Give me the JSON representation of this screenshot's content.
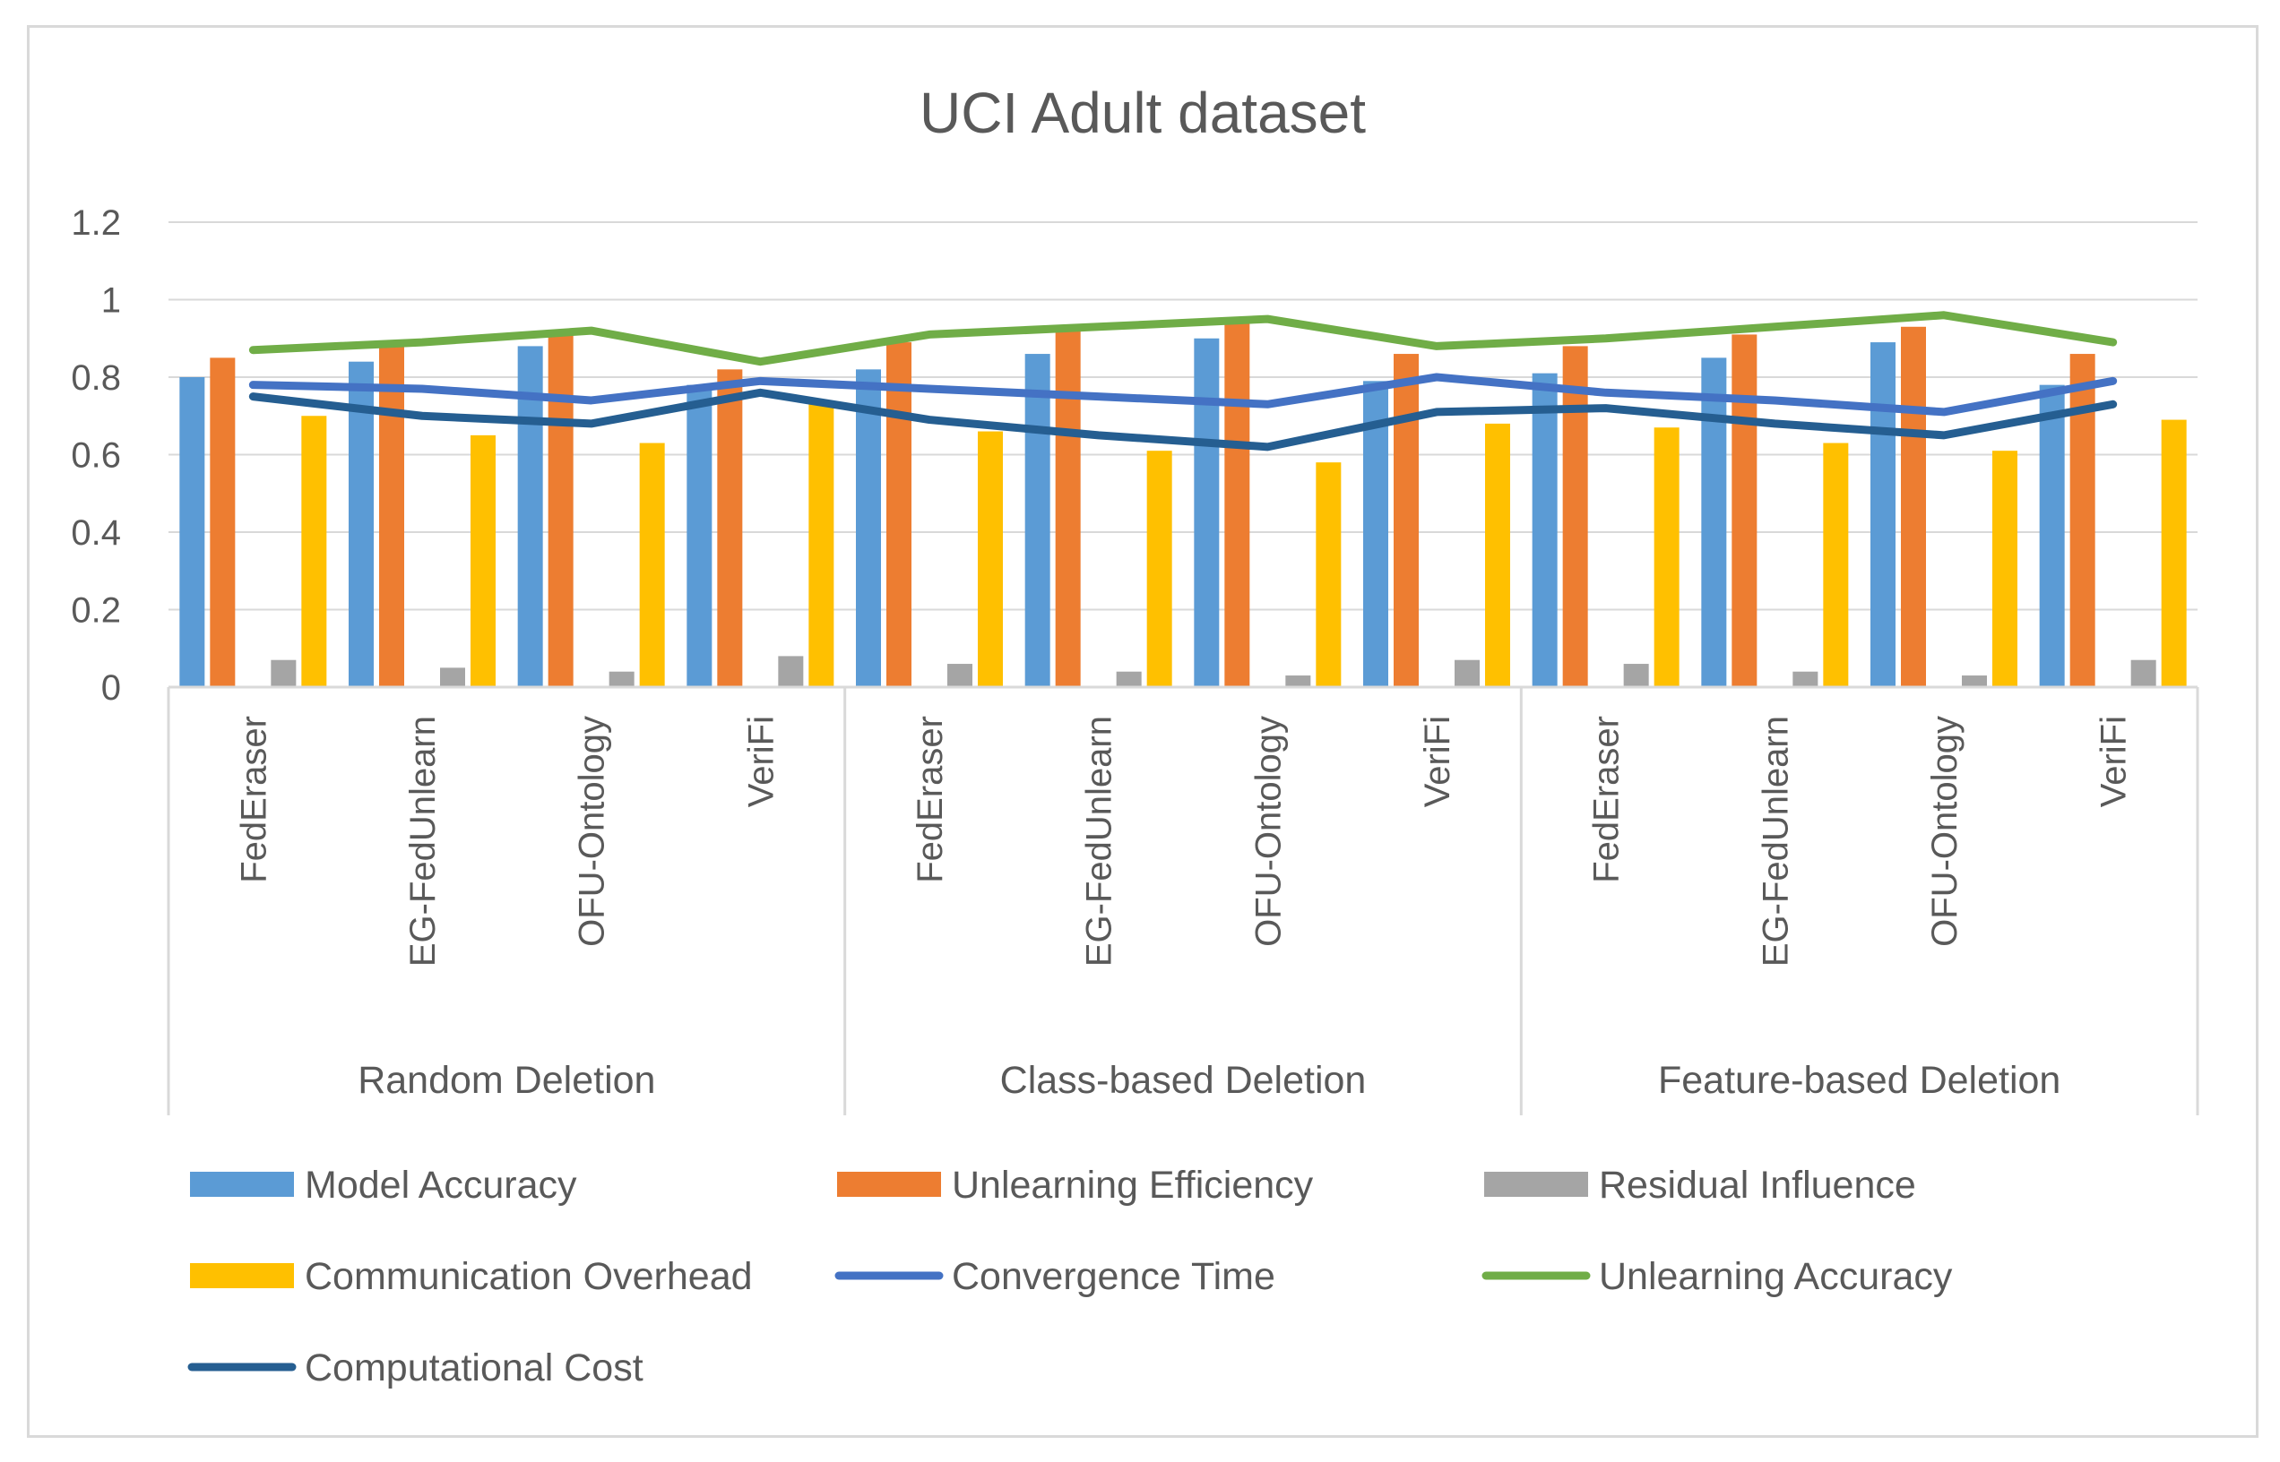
{
  "chart_data": {
    "type": "bar",
    "title": "UCI Adult dataset",
    "xlabel": "",
    "ylabel": "",
    "ylim": [
      0,
      1.2
    ],
    "yticks": [
      "0",
      "0.2",
      "0.4",
      "0.6",
      "0.8",
      "1",
      "1.2"
    ],
    "grid": true,
    "legend_position": "bottom",
    "groups": [
      "Random Deletion",
      "Class-based Deletion",
      "Feature-based Deletion"
    ],
    "categories": [
      "FedEraser",
      "EG-FedUnlearn",
      "OFU-Ontology",
      "VeriFi",
      "FedEraser",
      "EG-FedUnlearn",
      "OFU-Ontology",
      "VeriFi",
      "FedEraser",
      "EG-FedUnlearn",
      "OFU-Ontology",
      "VeriFi"
    ],
    "series": [
      {
        "name": "Model Accuracy",
        "kind": "bar",
        "color": "#5B9BD5",
        "values": [
          0.8,
          0.84,
          0.88,
          0.78,
          0.82,
          0.86,
          0.9,
          0.79,
          0.81,
          0.85,
          0.89,
          0.78
        ]
      },
      {
        "name": "Unlearning Efficiency",
        "kind": "bar",
        "color": "#ED7D31",
        "values": [
          0.85,
          0.88,
          0.91,
          0.82,
          0.89,
          0.92,
          0.94,
          0.86,
          0.88,
          0.91,
          0.93,
          0.86
        ]
      },
      {
        "name": "Residual Influence",
        "kind": "bar",
        "color": "#A5A5A5",
        "values": [
          0.07,
          0.05,
          0.04,
          0.08,
          0.06,
          0.04,
          0.03,
          0.07,
          0.06,
          0.04,
          0.03,
          0.07
        ]
      },
      {
        "name": "Communication Overhead",
        "kind": "bar",
        "color": "#FFC000",
        "values": [
          0.7,
          0.65,
          0.63,
          0.73,
          0.66,
          0.61,
          0.58,
          0.68,
          0.67,
          0.63,
          0.61,
          0.69
        ]
      },
      {
        "name": "Convergence Time",
        "kind": "line",
        "color": "#4472C4",
        "values": [
          0.78,
          0.77,
          0.74,
          0.79,
          0.77,
          0.75,
          0.73,
          0.8,
          0.76,
          0.74,
          0.71,
          0.79
        ]
      },
      {
        "name": "Unlearning Accuracy",
        "kind": "line",
        "color": "#70AD47",
        "values": [
          0.87,
          0.89,
          0.92,
          0.84,
          0.91,
          0.93,
          0.95,
          0.88,
          0.9,
          0.93,
          0.96,
          0.89
        ]
      },
      {
        "name": "Computational Cost",
        "kind": "line",
        "color": "#255E91",
        "values": [
          0.75,
          0.7,
          0.68,
          0.76,
          0.69,
          0.65,
          0.62,
          0.71,
          0.72,
          0.68,
          0.65,
          0.73
        ]
      }
    ]
  }
}
